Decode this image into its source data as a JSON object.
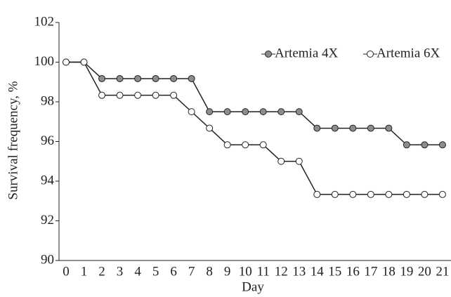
{
  "chart_data": {
    "type": "line",
    "x_label": "Day",
    "y_label": "Survival frequency, %",
    "categories": [
      "0",
      "1",
      "2",
      "3",
      "4",
      "5",
      "6",
      "7",
      "8",
      "9",
      "10",
      "11",
      "12",
      "13",
      "14",
      "15",
      "16",
      "17",
      "18",
      "19",
      "20",
      "21"
    ],
    "series": [
      {
        "name": "Artemia 4X",
        "color": "#8c8c8c",
        "values": [
          100,
          100,
          99.17,
          99.17,
          99.17,
          99.17,
          99.17,
          99.17,
          97.5,
          97.5,
          97.5,
          97.5,
          97.5,
          97.5,
          96.67,
          96.67,
          96.67,
          96.67,
          96.67,
          95.83,
          95.83,
          95.83
        ]
      },
      {
        "name": "Artemia 6X",
        "color": "#ffffff",
        "values": [
          100,
          100,
          98.33,
          98.33,
          98.33,
          98.33,
          98.33,
          97.5,
          96.67,
          95.83,
          95.83,
          95.83,
          95,
          95,
          93.33,
          93.33,
          93.33,
          93.33,
          93.33,
          93.33,
          93.33,
          93.33
        ]
      }
    ],
    "ylim": [
      90,
      102
    ],
    "yticks": [
      90,
      92,
      94,
      96,
      98,
      100,
      102
    ],
    "legend": "upper-right"
  }
}
